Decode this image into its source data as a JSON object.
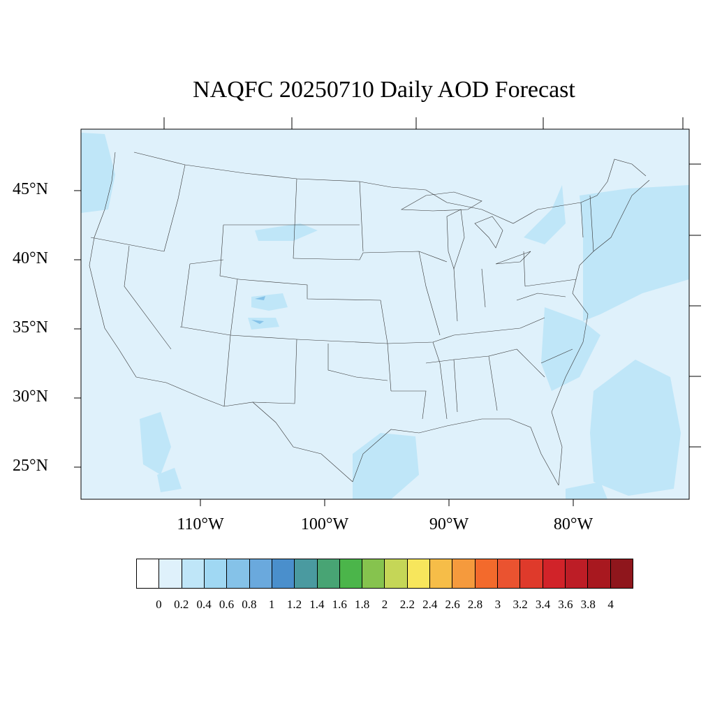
{
  "title": "NAQFC 20250710 Daily AOD Forecast",
  "lat_labels": [
    "45°N",
    "40°N",
    "35°N",
    "30°N",
    "25°N"
  ],
  "lon_labels": [
    "110°W",
    "100°W",
    "90°W",
    "80°W"
  ],
  "colorbar": {
    "labels": [
      "0",
      "0.2",
      "0.4",
      "0.6",
      "0.8",
      "1",
      "1.2",
      "1.4",
      "1.6",
      "1.8",
      "2",
      "2.2",
      "2.4",
      "2.6",
      "2.8",
      "3",
      "3.2",
      "3.4",
      "3.6",
      "3.8",
      "4"
    ],
    "colors": [
      "#ffffff",
      "#dff1fb",
      "#bfe6f8",
      "#a0d8f3",
      "#85c2e8",
      "#6aa9dd",
      "#4a8fcc",
      "#4a9aa0",
      "#48a474",
      "#4bb54a",
      "#86c34e",
      "#c5d657",
      "#f7e65c",
      "#f6bd48",
      "#f59a3d",
      "#f36a2c",
      "#ea5330",
      "#df3a2b",
      "#d12329",
      "#bd1d26",
      "#a8181f",
      "#8f161c"
    ]
  },
  "map": {
    "projection": "lat-lon",
    "extent_lon": [
      -119,
      -70
    ],
    "extent_lat": [
      22.5,
      49
    ],
    "background_aod": 0.2,
    "ocean_aod": 0.2,
    "features": [
      "state boundaries",
      "coastlines",
      "country borders"
    ]
  }
}
